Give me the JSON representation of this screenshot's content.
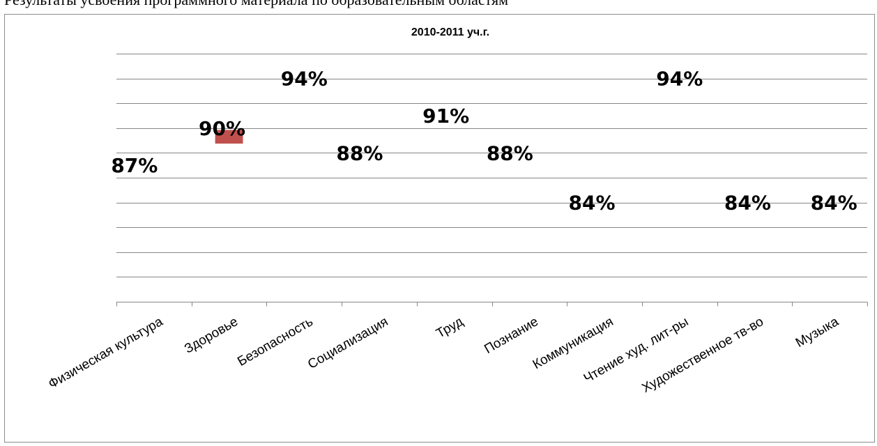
{
  "caption_fragment": "Результаты усвоения программного материала по образовательным областям",
  "chart_data": {
    "type": "bar",
    "title": "2010-2011 уч.г.",
    "categories": [
      "Физическая культура",
      "Здоровье",
      "Безопасность",
      "Социализация",
      "Труд",
      "Познание",
      "Коммуникация",
      "Чтение худ. лит-ры",
      "Художественное тв-во",
      "Музыка"
    ],
    "series": [
      {
        "values": [
          87,
          90,
          94,
          88,
          91,
          88,
          84,
          94,
          84,
          84
        ]
      }
    ],
    "data_labels": [
      "87%",
      "90%",
      "94%",
      "88%",
      "91%",
      "88%",
      "84%",
      "94%",
      "84%",
      "84%"
    ],
    "ylim": [
      76,
      96
    ],
    "y_gridlines": [
      76,
      78,
      80,
      82,
      84,
      86,
      88,
      90,
      92,
      94,
      96
    ],
    "y_tick_labels_visible": false,
    "grid": true,
    "legend": "none",
    "colors": {
      "bar": "#c0504d",
      "gridline": "#868686",
      "axis": "#868686",
      "text": "#000000"
    },
    "visible_bar_index": 1,
    "visible_bar_range": [
      88.75,
      89.85
    ]
  }
}
